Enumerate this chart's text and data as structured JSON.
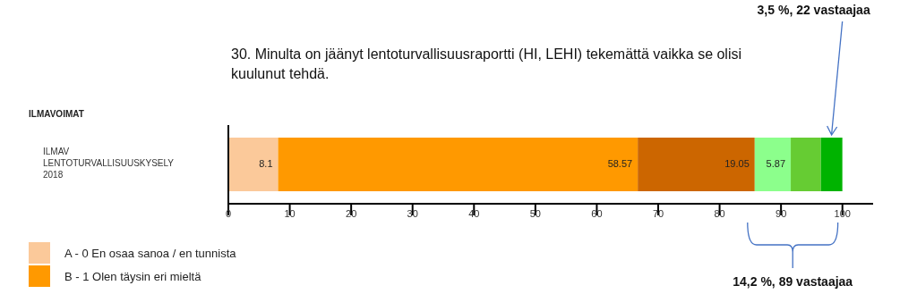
{
  "chart_data": {
    "type": "bar",
    "orientation": "horizontal",
    "stacked": true,
    "title": "30. Minulta on jäänyt lentoturvallisuusraportti (HI, LEHI) tekemättä vaikka se olisi kuulunut tehdä.",
    "categories": [
      "ILMAV LENTOTURVALLISUUSKYSELY 2018"
    ],
    "series": [
      {
        "name": "A - 0 En osaa sanoa / en tunnista",
        "color": "#fbc99a",
        "values": [
          8.1
        ],
        "value_labels": [
          "8.1"
        ]
      },
      {
        "name": "B - 1 Olen täysin eri mieltä",
        "color": "#ff9900",
        "values": [
          58.57
        ],
        "value_labels": [
          "58.57"
        ]
      },
      {
        "color": "#cc6600",
        "values": [
          19.05
        ],
        "value_labels": [
          "19.05"
        ]
      },
      {
        "color": "#8cff8c",
        "values": [
          5.87
        ],
        "value_labels": [
          "5.87"
        ]
      },
      {
        "color": "#66cc33",
        "values": [
          4.9
        ]
      },
      {
        "color": "#00b300",
        "values": [
          3.5
        ]
      }
    ],
    "xlim": [
      0,
      105
    ],
    "xticks": [
      0,
      10,
      20,
      30,
      40,
      50,
      60,
      70,
      80,
      90,
      100
    ],
    "legend": "bottom left",
    "annotations": [
      "ILMAVOIMAT",
      "3,5 %, 22 vastaajaa",
      "14,2 %, 89 vastaajaa"
    ]
  }
}
